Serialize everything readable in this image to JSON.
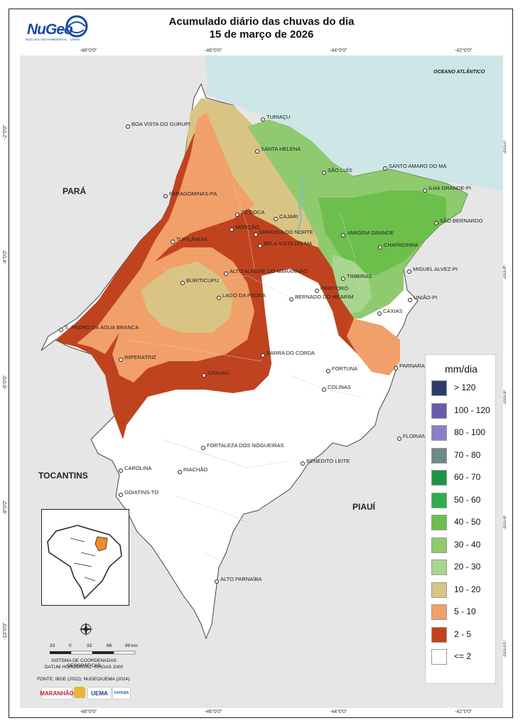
{
  "header": {
    "title": "Acumulado diário das chuvas do dia",
    "date": "15 de março de 2026",
    "logo_text": "NuGeo",
    "logo_subtitle": "NÚCLEO GEOAMBIENTAL - UEMA"
  },
  "coordinates": {
    "top": [
      "-48°0'0\"",
      "-46°0'0\"",
      "-44°0'0\"",
      "-42°0'0\""
    ],
    "bottom": [
      "-48°0'0\"",
      "-46°0'0\"",
      "-44°0'0\"",
      "-42°0'0\""
    ],
    "left": [
      "-2°0'0\"",
      "-4°0'0\"",
      "-6°0'0\"",
      "-8°0'0\"",
      "-10°0'0\""
    ],
    "right": [
      "-2°0'0\"",
      "-4°0'0\"",
      "-6°0'0\"",
      "-8°0'0\"",
      "-10°0'0\""
    ]
  },
  "regions": {
    "para": "PARÁ",
    "tocantins": "TOCANTINS",
    "piaui": "PIAUÍ",
    "ocean": "OCEANO ATLÂNTICO"
  },
  "cities": [
    "TURIAÇU",
    "BOA VISTA DO GURUPI",
    "SANTA HELENA",
    "SÃO LUÍS",
    "SANTO AMARO DO MA",
    "PARAGOMINAS-PA",
    "ILHA GRANDE-PI",
    "ZÉ DOCA",
    "CAJARI",
    "SÃO BERNARDO",
    "MONÇÃO",
    "MIRANDA DO NORTE",
    "VARGEM GRANDE",
    "TUFILÂNDIA",
    "BELA VISTA DO MA",
    "CHAPADINHA",
    "ALTO ALEGRE DO MARANHÃO",
    "MIGUEL ALVEZ-PI",
    "BURITICUPU",
    "TIMBIRAS",
    "PERITORÓ",
    "LAGO DA PEDRA",
    "BERNADO DO MEARIM",
    "UNIÃO-PI",
    "CAXIAS",
    "S. PEDRO DA ÁGUA BRANCA",
    "BARRA DO CORDA",
    "IMPERATRIZ",
    "PARNARAMA",
    "FORTUNA",
    "GRAJAÚ",
    "COLINAS",
    "FLORIANO",
    "FORTALEZA DOS NOGUEIRAS",
    "BENEDITO LEITE",
    "CAROLINA",
    "RIACHÃO",
    "GOIATINS-TO",
    "ALTO PARNAÍBA"
  ],
  "legend": {
    "title": "mm/dia",
    "items": [
      {
        "label": "> 120",
        "color": "#2e3a6e"
      },
      {
        "label": "100 - 120",
        "color": "#6a5aab"
      },
      {
        "label": "80 - 100",
        "color": "#8b7fc8"
      },
      {
        "label": "70 - 80",
        "color": "#6e8a85"
      },
      {
        "label": "60 - 70",
        "color": "#1e9448"
      },
      {
        "label": "50 - 60",
        "color": "#2fae4d"
      },
      {
        "label": "40 - 50",
        "color": "#6cbf4a"
      },
      {
        "label": "30 - 40",
        "color": "#8fca6e"
      },
      {
        "label": "20 - 30",
        "color": "#a9d68e"
      },
      {
        "label": "10 - 20",
        "color": "#d9c483"
      },
      {
        "label": "5 - 10",
        "color": "#f1a06a"
      },
      {
        "label": "2 - 5",
        "color": "#c0431f"
      },
      {
        "label": "<= 2",
        "color": "#ffffff"
      }
    ]
  },
  "scale": {
    "ticks": [
      "33",
      "0",
      "33",
      "66",
      "99 km"
    ],
    "system_line1": "SISTEMA DE COORDENADAS GEOGRÁFICAS",
    "system_line2": "DATUM HORIZONTAL: SIRGAS 2000",
    "source": "FONTE: IBGE (2022); NUGEO/UEMA (2024)."
  },
  "partners": [
    "MARANHÃO",
    "UEMA",
    "FAPEMA"
  ],
  "colors": {
    "ocean": "#cde6e6",
    "land_outside": "#e6e6e6",
    "state_inside": "#ffffff",
    "state_highlight": "#f28c28"
  }
}
